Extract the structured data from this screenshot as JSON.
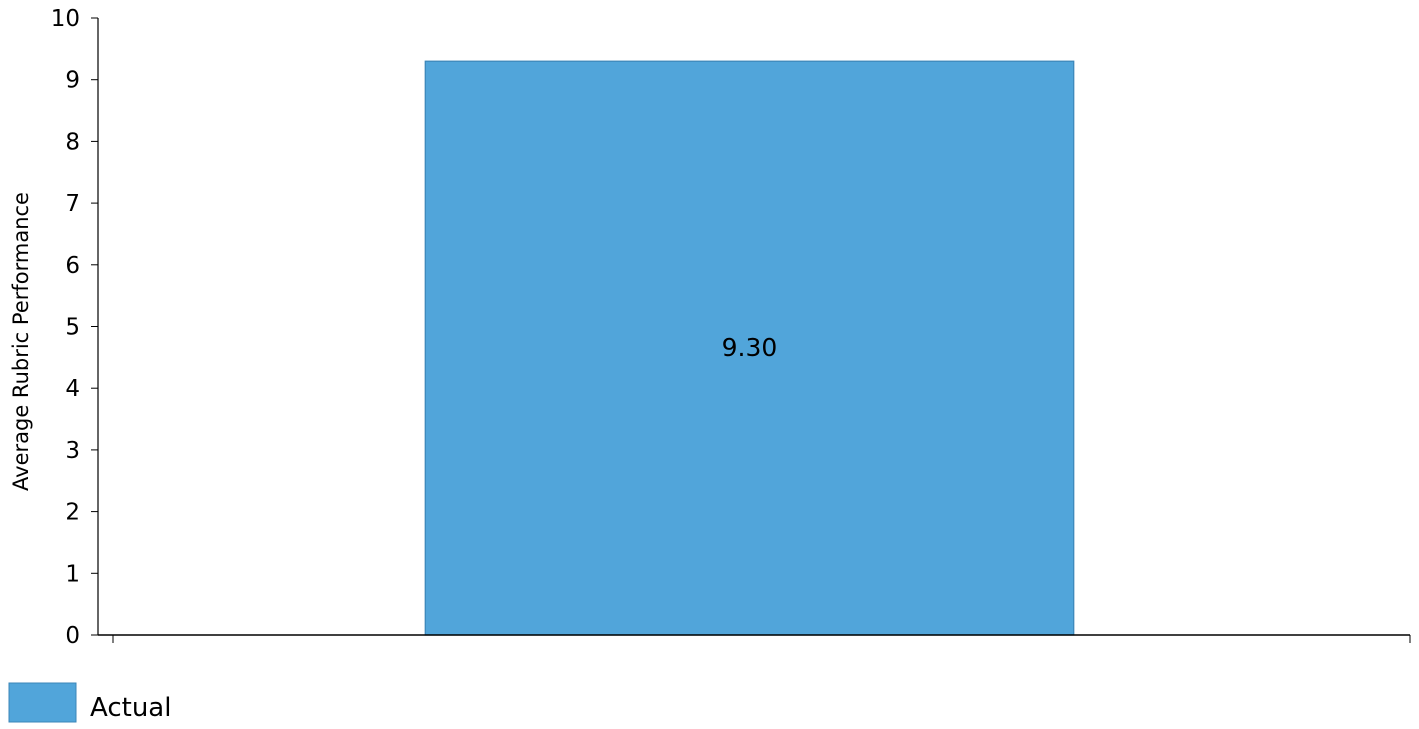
{
  "chart_data": {
    "type": "bar",
    "categories": [
      ""
    ],
    "series": [
      {
        "name": "Actual",
        "values": [
          9.3
        ],
        "color": "#51a5da"
      }
    ],
    "data_labels": [
      "9.30"
    ],
    "title": "",
    "xlabel": "",
    "ylabel": "Average Rubric Performance",
    "ylim": [
      0,
      10
    ],
    "yticks": [
      0,
      1,
      2,
      3,
      4,
      5,
      6,
      7,
      8,
      9,
      10
    ],
    "grid": false,
    "legend_position": "bottom-left"
  }
}
